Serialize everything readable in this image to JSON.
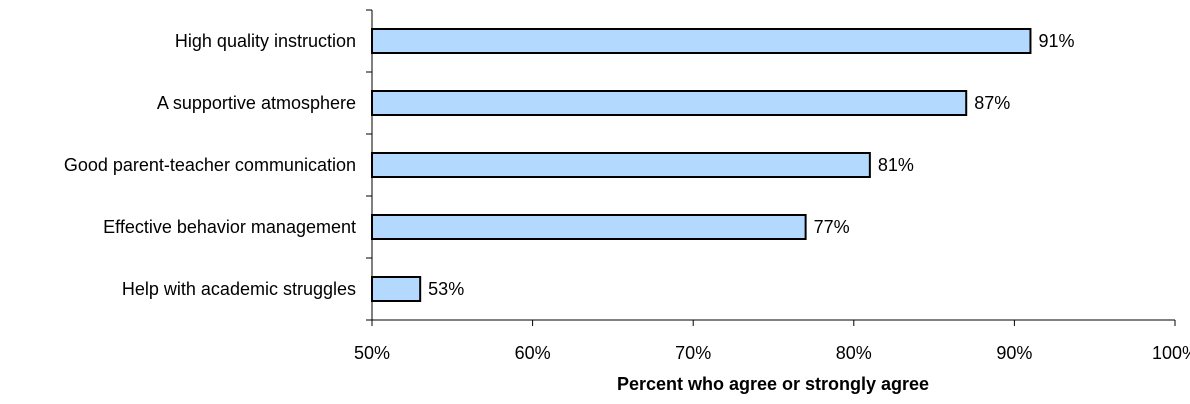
{
  "chart_data": {
    "type": "bar",
    "orientation": "horizontal",
    "categories": [
      "High quality instruction",
      "A supportive atmosphere",
      "Good parent-teacher communication",
      "Effective behavior management",
      "Help with academic struggles"
    ],
    "values": [
      91,
      87,
      81,
      77,
      53
    ],
    "data_labels": [
      "91%",
      "87%",
      "81%",
      "77%",
      "53%"
    ],
    "x_ticks": [
      50,
      60,
      70,
      80,
      90,
      100
    ],
    "x_tick_labels": [
      "50%",
      "60%",
      "70%",
      "80%",
      "90%",
      "100%"
    ],
    "xlabel": "Percent who agree or strongly agree",
    "xlim": [
      50,
      100
    ],
    "grid": false,
    "bar_color": "#b3d9ff",
    "bar_edge_color": "#000000"
  }
}
